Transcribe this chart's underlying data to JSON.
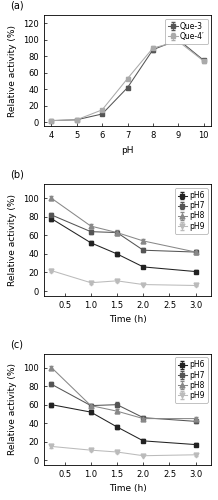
{
  "panel_a": {
    "xlabel": "pH",
    "ylabel": "Relative activity (%)",
    "title": "(a)",
    "xlim": [
      3.7,
      10.3
    ],
    "ylim": [
      -5,
      130
    ],
    "xticks": [
      4,
      5,
      6,
      7,
      8,
      9,
      10
    ],
    "yticks": [
      0,
      20,
      40,
      60,
      80,
      100,
      120
    ],
    "series": [
      {
        "label": "Que-3",
        "x": [
          4,
          5,
          6,
          7,
          8,
          9,
          10
        ],
        "y": [
          2,
          3,
          10,
          42,
          88,
          100,
          75
        ],
        "yerr": [
          1,
          1,
          1.5,
          2,
          2.5,
          2,
          2
        ],
        "marker": "s",
        "color": "#555555",
        "linestyle": "-"
      },
      {
        "label": "Que-4′",
        "x": [
          4,
          5,
          6,
          7,
          8,
          9,
          10
        ],
        "y": [
          2,
          3,
          15,
          53,
          90,
          98,
          74
        ],
        "yerr": [
          1,
          1,
          1.5,
          2,
          2.5,
          2,
          2
        ],
        "marker": "s",
        "color": "#aaaaaa",
        "linestyle": "-"
      }
    ]
  },
  "panel_b": {
    "xlabel": "Time (h)",
    "ylabel": "Relative activity (%)",
    "title": "(b)",
    "xlim": [
      0.1,
      3.3
    ],
    "ylim": [
      -5,
      115
    ],
    "xticks": [
      0.5,
      1.0,
      1.5,
      2.0,
      2.5,
      3.0
    ],
    "yticks": [
      0,
      20,
      40,
      60,
      80,
      100
    ],
    "series": [
      {
        "label": "pH6",
        "x": [
          0.25,
          1.0,
          1.5,
          2.0,
          3.0
        ],
        "y": [
          78,
          52,
          40,
          26,
          21
        ],
        "yerr": [
          2,
          2,
          2,
          1.5,
          1.5
        ],
        "marker": "s",
        "color": "#222222",
        "linestyle": "-"
      },
      {
        "label": "pH7",
        "x": [
          0.25,
          1.0,
          1.5,
          2.0,
          3.0
        ],
        "y": [
          82,
          64,
          63,
          44,
          42
        ],
        "yerr": [
          2,
          2,
          2,
          2,
          2
        ],
        "marker": "s",
        "color": "#555555",
        "linestyle": "-"
      },
      {
        "label": "pH8",
        "x": [
          0.25,
          1.0,
          1.5,
          2.0,
          3.0
        ],
        "y": [
          100,
          70,
          63,
          54,
          42
        ],
        "yerr": [
          2,
          2.5,
          3,
          2,
          2
        ],
        "marker": "^",
        "color": "#888888",
        "linestyle": "-"
      },
      {
        "label": "pH9",
        "x": [
          0.25,
          1.0,
          1.5,
          2.0,
          3.0
        ],
        "y": [
          22,
          9,
          11,
          7,
          6
        ],
        "yerr": [
          1.5,
          1,
          1,
          0.8,
          0.8
        ],
        "marker": "v",
        "color": "#bbbbbb",
        "linestyle": "-"
      }
    ]
  },
  "panel_c": {
    "xlabel": "Time (h)",
    "ylabel": "Relative activity (%)",
    "title": "(c)",
    "xlim": [
      0.1,
      3.3
    ],
    "ylim": [
      -5,
      115
    ],
    "xticks": [
      0.5,
      1.0,
      1.5,
      2.0,
      2.5,
      3.0
    ],
    "yticks": [
      0,
      20,
      40,
      60,
      80,
      100
    ],
    "series": [
      {
        "label": "pH6",
        "x": [
          0.25,
          1.0,
          1.5,
          2.0,
          3.0
        ],
        "y": [
          60,
          52,
          36,
          21,
          17
        ],
        "yerr": [
          2,
          2,
          2,
          1.5,
          1.5
        ],
        "marker": "s",
        "color": "#222222",
        "linestyle": "-"
      },
      {
        "label": "pH7",
        "x": [
          0.25,
          1.0,
          1.5,
          2.0,
          3.0
        ],
        "y": [
          82,
          59,
          60,
          46,
          42
        ],
        "yerr": [
          2,
          2,
          2.5,
          2,
          2
        ],
        "marker": "s",
        "color": "#555555",
        "linestyle": "-"
      },
      {
        "label": "pH8",
        "x": [
          0.25,
          1.0,
          1.5,
          2.0,
          3.0
        ],
        "y": [
          100,
          59,
          53,
          45,
          45
        ],
        "yerr": [
          2,
          2,
          2.5,
          2,
          2
        ],
        "marker": "^",
        "color": "#888888",
        "linestyle": "-"
      },
      {
        "label": "pH9",
        "x": [
          0.25,
          1.0,
          1.5,
          2.0,
          3.0
        ],
        "y": [
          15,
          11,
          9,
          5,
          6
        ],
        "yerr": [
          1.5,
          1,
          1,
          0.8,
          0.8
        ],
        "marker": "v",
        "color": "#bbbbbb",
        "linestyle": "-"
      }
    ]
  },
  "figure_bg": "#ffffff",
  "axes_bg": "#ffffff",
  "font_size": 7,
  "legend_font_size": 5.5,
  "label_font_size": 6.5,
  "tick_font_size": 6,
  "linewidth": 0.75,
  "markersize": 3.5,
  "elinewidth": 0.6,
  "capsize": 1.5
}
